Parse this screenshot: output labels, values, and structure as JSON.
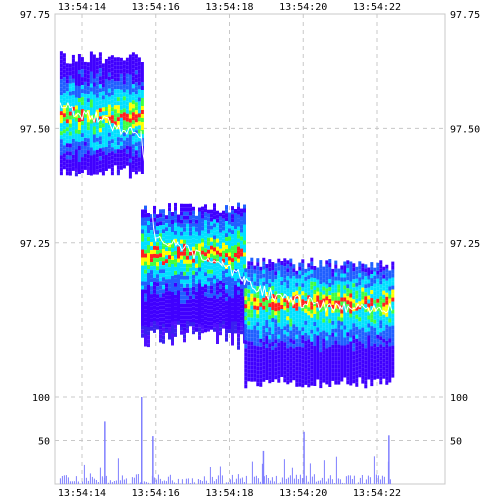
{
  "chart_data": [
    {
      "type": "heatmap",
      "description_kind": "order book depth heatmap with last trade price",
      "x_ticks": [
        "13:54:14",
        "13:54:16",
        "13:54:18",
        "13:54:20",
        "13:54:22"
      ],
      "x_tick_values": [
        0,
        2,
        4,
        6,
        8
      ],
      "xlim": [
        -0.6,
        9.0
      ],
      "y_ticks": [
        "97.75",
        "97.50",
        "97.25"
      ],
      "y_tick_values": [
        97.75,
        97.5,
        97.25
      ],
      "ylim": [
        96.95,
        97.75
      ],
      "colors": {
        "dense": "#4000ff",
        "blue": "#2060ff",
        "cyan": "#00e0ff",
        "green": "#40ff40",
        "yellow": "#ffff00",
        "red": "#ff2020",
        "trade_line": "#ffffff"
      },
      "segments": [
        {
          "t_start": -0.6,
          "t_end": 1.6,
          "price_low": 97.42,
          "price_high": 97.66,
          "mid": 97.53,
          "fan_bottom": 97.4
        },
        {
          "t_start": 1.6,
          "t_end": 4.4,
          "price_low": 97.08,
          "price_high": 97.33,
          "mid": 97.23,
          "fan_bottom": 97.02
        },
        {
          "t_start": 4.4,
          "t_end": 8.4,
          "price_low": 96.96,
          "price_high": 97.21,
          "mid": 97.12,
          "fan_bottom": 96.96
        }
      ],
      "trade_price": [
        [
          -0.6,
          97.55
        ],
        [
          0.0,
          97.53
        ],
        [
          0.6,
          97.52
        ],
        [
          1.0,
          97.5
        ],
        [
          1.6,
          97.49
        ],
        [
          2.0,
          97.26
        ],
        [
          2.6,
          97.24
        ],
        [
          3.2,
          97.22
        ],
        [
          3.8,
          97.2
        ],
        [
          4.4,
          97.17
        ],
        [
          5.0,
          97.14
        ],
        [
          6.0,
          97.12
        ],
        [
          7.0,
          97.11
        ],
        [
          8.4,
          97.11
        ]
      ]
    },
    {
      "type": "bar",
      "description_kind": "volume histogram",
      "x_ticks": [
        "13:54:14",
        "13:54:16",
        "13:54:18",
        "13:54:20",
        "13:54:22"
      ],
      "y_ticks": [
        "100",
        "50"
      ],
      "y_tick_values": [
        100,
        50
      ],
      "ylim": [
        0,
        120
      ],
      "bar_color": "#8080ff",
      "spikes": [
        {
          "t": 1.6,
          "value": 100
        },
        {
          "t": 0.6,
          "value": 72
        },
        {
          "t": 1.9,
          "value": 55
        },
        {
          "t": 6.0,
          "value": 60
        },
        {
          "t": 8.3,
          "value": 56
        },
        {
          "t": 4.9,
          "value": 38
        }
      ]
    }
  ]
}
